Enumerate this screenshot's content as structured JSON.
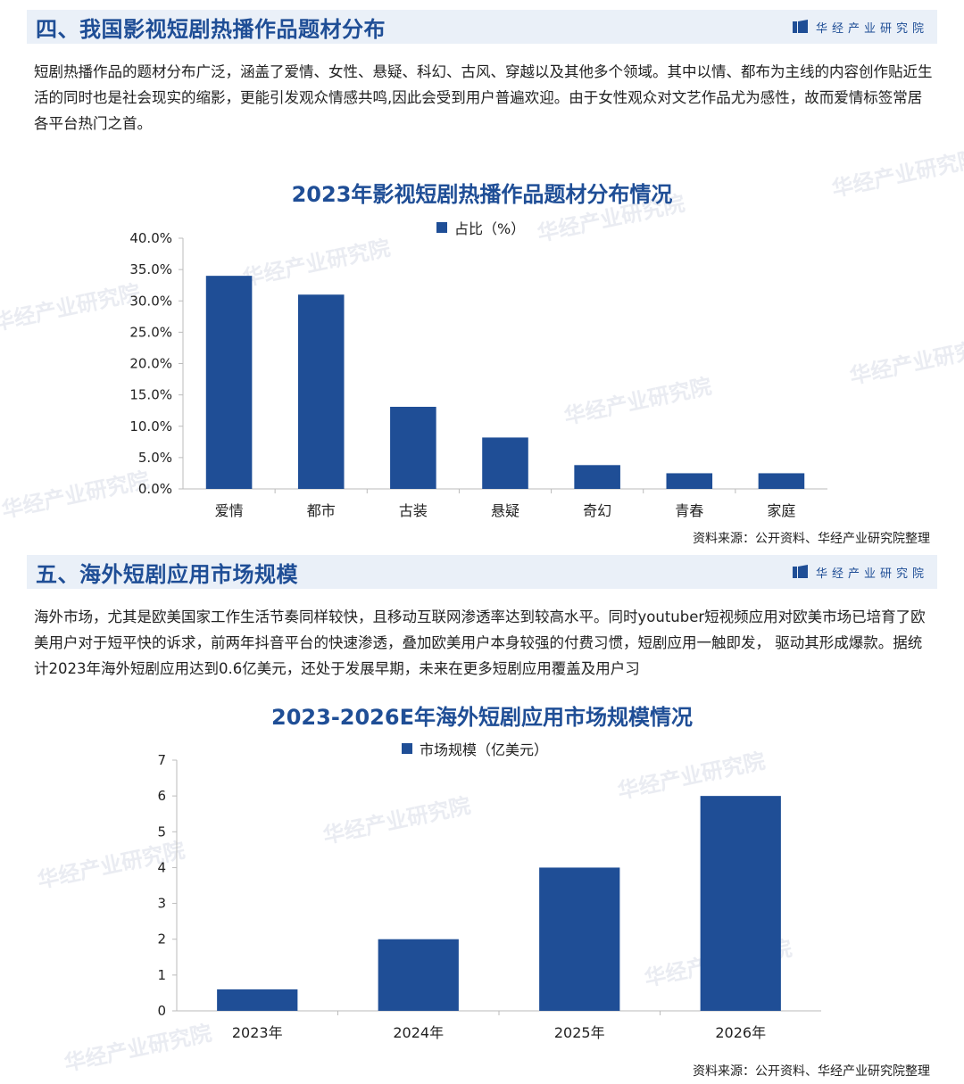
{
  "brand": {
    "name": "华经产业研究院"
  },
  "section1": {
    "title": "四、我国影视短剧热播作品题材分布",
    "paragraph": "短剧热播作品的题材分布广泛，涵盖了爱情、女性、悬疑、科幻、古风、穿越以及其他多个领域。其中以情、都布为主线的内容创作贴近生活的同时也是社会现实的缩影，更能引发观众情感共鸣,因此会受到用户普遍欢迎。由于女性观众对文艺作品尤为感性，故而爱情标签常居各平台热门之首。",
    "source": "资料来源：公开资料、华经产业研究院整理"
  },
  "section2": {
    "title": "五、海外短剧应用市场规模",
    "paragraph": "海外市场，尤其是欧美国家工作生活节奏同样较快，且移动互联网渗透率达到较高水平。同时youtuber短视频应用对欧美市场已培育了欧美用户对于短平快的诉求，前两年抖音平台的快速渗透，叠加欧美用户本身较强的付费习惯，短剧应用一触即发， 驱动其形成爆款。据统计2023年海外短剧应用达到0.6亿美元，还处于发展早期，未来在更多短剧应用覆盖及用户习",
    "source": "资料来源：公开资料、华经产业研究院整理"
  },
  "colors": {
    "accent": "#1f4e96",
    "header_bg": "#eaf0f8",
    "axis": "#bbbbbb"
  },
  "chart_data": [
    {
      "type": "bar",
      "title": "2023年影视短剧热播作品题材分布情况",
      "categories": [
        "爱情",
        "都市",
        "古装",
        "悬疑",
        "奇幻",
        "青春",
        "家庭"
      ],
      "series": [
        {
          "name": "占比（%）",
          "values": [
            34.0,
            31.0,
            13.1,
            8.2,
            3.8,
            2.5,
            2.5
          ]
        }
      ],
      "ylim": [
        0,
        40
      ],
      "yticks": [
        "0.0%",
        "5.0%",
        "10.0%",
        "15.0%",
        "20.0%",
        "25.0%",
        "30.0%",
        "35.0%",
        "40.0%"
      ],
      "legend": "top-center",
      "grid": false
    },
    {
      "type": "bar",
      "title": "2023-2026E年海外短剧应用市场规模情况",
      "categories": [
        "2023年",
        "2024年",
        "2025年",
        "2026年"
      ],
      "series": [
        {
          "name": "市场规模（亿美元）",
          "values": [
            0.6,
            2.0,
            4.0,
            6.0
          ]
        }
      ],
      "ylim": [
        0,
        7
      ],
      "yticks": [
        "0",
        "1",
        "2",
        "3",
        "4",
        "5",
        "6",
        "7"
      ],
      "legend": "top-center",
      "grid": false
    }
  ]
}
